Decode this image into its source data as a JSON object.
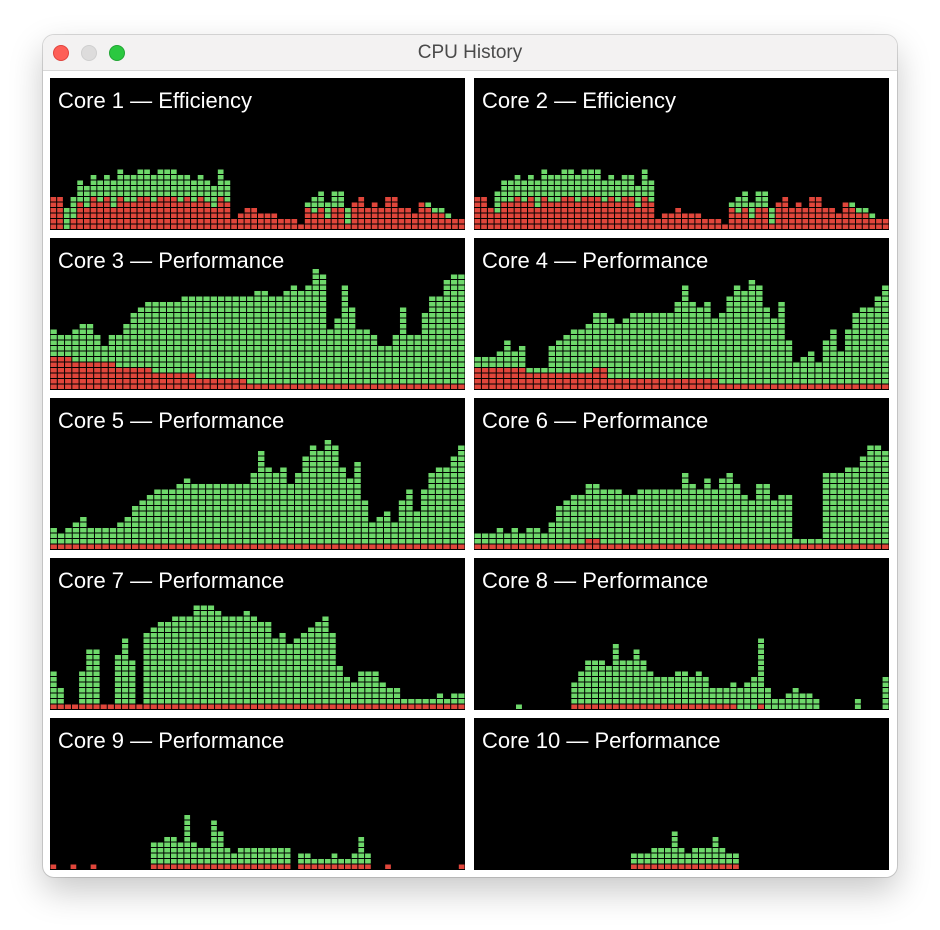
{
  "window": {
    "title": "CPU History"
  },
  "colors": {
    "user": "#6ed86b",
    "system": "#e0463b",
    "background": "#000000"
  },
  "cores": [
    {
      "label": "Core 1 — Efficiency",
      "user": [
        0,
        0,
        4,
        4,
        4,
        4,
        4,
        4,
        4,
        5,
        5,
        5,
        5,
        5,
        5,
        5,
        5,
        5,
        5,
        5,
        4,
        4,
        4,
        4,
        4,
        5,
        4,
        0,
        0,
        0,
        0,
        0,
        0,
        0,
        0,
        0,
        0,
        0,
        1,
        3,
        3,
        3,
        3,
        3,
        3,
        0,
        0,
        0,
        0,
        0,
        0,
        0,
        0,
        0,
        0,
        0,
        1,
        1,
        1,
        1,
        0,
        0
      ],
      "system": [
        6,
        6,
        0,
        2,
        5,
        4,
        6,
        5,
        6,
        4,
        6,
        5,
        5,
        6,
        6,
        5,
        6,
        6,
        6,
        5,
        6,
        5,
        6,
        5,
        4,
        6,
        5,
        2,
        3,
        4,
        4,
        3,
        3,
        3,
        2,
        2,
        2,
        1,
        4,
        3,
        4,
        2,
        4,
        4,
        1,
        5,
        6,
        4,
        5,
        4,
        6,
        6,
        4,
        4,
        3,
        5,
        4,
        3,
        3,
        2,
        2,
        2
      ]
    },
    {
      "label": "Core 2 — Efficiency",
      "user": [
        0,
        0,
        0,
        4,
        4,
        4,
        4,
        4,
        4,
        5,
        5,
        5,
        5,
        5,
        5,
        5,
        5,
        5,
        5,
        4,
        4,
        4,
        4,
        4,
        4,
        5,
        4,
        0,
        0,
        0,
        0,
        0,
        0,
        0,
        0,
        0,
        0,
        0,
        1,
        3,
        3,
        3,
        3,
        3,
        3,
        0,
        0,
        0,
        0,
        0,
        0,
        0,
        0,
        0,
        0,
        0,
        1,
        1,
        1,
        1,
        0,
        0
      ],
      "system": [
        6,
        6,
        4,
        3,
        5,
        5,
        6,
        5,
        6,
        4,
        6,
        5,
        5,
        6,
        6,
        5,
        6,
        6,
        6,
        5,
        6,
        5,
        6,
        6,
        4,
        6,
        5,
        2,
        3,
        3,
        4,
        3,
        3,
        3,
        2,
        2,
        2,
        1,
        4,
        3,
        4,
        2,
        4,
        4,
        1,
        5,
        6,
        4,
        5,
        4,
        6,
        6,
        4,
        4,
        3,
        5,
        4,
        3,
        3,
        2,
        2,
        2
      ]
    },
    {
      "label": "Core 3 — Performance",
      "user": [
        5,
        4,
        4,
        6,
        7,
        7,
        5,
        3,
        5,
        6,
        8,
        10,
        11,
        12,
        13,
        13,
        13,
        13,
        14,
        14,
        15,
        15,
        15,
        15,
        15,
        15,
        15,
        16,
        17,
        17,
        16,
        16,
        17,
        18,
        17,
        18,
        21,
        20,
        10,
        12,
        18,
        14,
        10,
        10,
        9,
        7,
        7,
        9,
        14,
        9,
        9,
        13,
        16,
        16,
        19,
        20,
        20
      ],
      "system": [
        6,
        6,
        6,
        5,
        5,
        5,
        5,
        5,
        5,
        4,
        4,
        4,
        4,
        4,
        3,
        3,
        3,
        3,
        3,
        3,
        2,
        2,
        2,
        2,
        2,
        2,
        2,
        1,
        1,
        1,
        1,
        1,
        1,
        1,
        1,
        1,
        1,
        1,
        1,
        1,
        1,
        1,
        1,
        1,
        1,
        1,
        1,
        1,
        1,
        1,
        1,
        1,
        1,
        1,
        1,
        1,
        1
      ]
    },
    {
      "label": "Core 4 — Performance",
      "user": [
        2,
        2,
        2,
        3,
        5,
        3,
        4,
        1,
        1,
        1,
        5,
        6,
        7,
        8,
        8,
        9,
        10,
        10,
        11,
        10,
        11,
        12,
        12,
        12,
        12,
        12,
        12,
        14,
        17,
        14,
        13,
        14,
        11,
        13,
        16,
        18,
        17,
        19,
        18,
        14,
        12,
        15,
        8,
        4,
        5,
        6,
        4,
        8,
        10,
        6,
        10,
        13,
        14,
        14,
        16,
        18
      ],
      "system": [
        4,
        4,
        4,
        4,
        4,
        4,
        4,
        3,
        3,
        3,
        3,
        3,
        3,
        3,
        3,
        3,
        4,
        4,
        2,
        2,
        2,
        2,
        2,
        2,
        2,
        2,
        2,
        2,
        2,
        2,
        2,
        2,
        2,
        1,
        1,
        1,
        1,
        1,
        1,
        1,
        1,
        1,
        1,
        1,
        1,
        1,
        1,
        1,
        1,
        1,
        1,
        1,
        1,
        1,
        1,
        1
      ]
    },
    {
      "label": "Core 5 — Performance",
      "user": [
        3,
        2,
        3,
        4,
        5,
        3,
        3,
        3,
        3,
        4,
        5,
        7,
        8,
        9,
        10,
        10,
        10,
        11,
        12,
        11,
        11,
        11,
        11,
        11,
        11,
        11,
        11,
        13,
        17,
        14,
        13,
        14,
        11,
        13,
        16,
        18,
        17,
        19,
        18,
        14,
        12,
        15,
        8,
        4,
        5,
        6,
        4,
        8,
        10,
        6,
        10,
        13,
        14,
        14,
        16,
        18
      ],
      "system": [
        1,
        1,
        1,
        1,
        1,
        1,
        1,
        1,
        1,
        1,
        1,
        1,
        1,
        1,
        1,
        1,
        1,
        1,
        1,
        1,
        1,
        1,
        1,
        1,
        1,
        1,
        1,
        1,
        1,
        1,
        1,
        1,
        1,
        1,
        1,
        1,
        1,
        1,
        1,
        1,
        1,
        1,
        1,
        1,
        1,
        1,
        1,
        1,
        1,
        1,
        1,
        1,
        1,
        1,
        1,
        1
      ]
    },
    {
      "label": "Core 6 — Performance",
      "user": [
        2,
        2,
        2,
        3,
        2,
        3,
        2,
        3,
        3,
        2,
        4,
        7,
        8,
        9,
        9,
        10,
        10,
        10,
        10,
        10,
        9,
        9,
        10,
        10,
        10,
        10,
        10,
        10,
        13,
        11,
        10,
        12,
        10,
        12,
        13,
        11,
        9,
        8,
        11,
        11,
        8,
        9,
        9,
        1,
        1,
        1,
        1,
        13,
        13,
        13,
        14,
        14,
        16,
        18,
        18,
        17
      ],
      "system": [
        1,
        1,
        1,
        1,
        1,
        1,
        1,
        1,
        1,
        1,
        1,
        1,
        1,
        1,
        1,
        2,
        2,
        1,
        1,
        1,
        1,
        1,
        1,
        1,
        1,
        1,
        1,
        1,
        1,
        1,
        1,
        1,
        1,
        1,
        1,
        1,
        1,
        1,
        1,
        1,
        1,
        1,
        1,
        1,
        1,
        1,
        1,
        1,
        1,
        1,
        1,
        1,
        1,
        1,
        1,
        1
      ]
    },
    {
      "label": "Core 7 — Performance",
      "user": [
        6,
        3,
        0,
        0,
        6,
        10,
        10,
        0,
        0,
        9,
        12,
        8,
        0,
        13,
        14,
        15,
        15,
        16,
        16,
        16,
        18,
        18,
        18,
        17,
        16,
        16,
        16,
        17,
        16,
        15,
        15,
        12,
        13,
        11,
        12,
        13,
        14,
        15,
        16,
        13,
        7,
        5,
        4,
        6,
        6,
        6,
        4,
        3,
        3,
        1,
        1,
        1,
        1,
        1,
        2,
        1,
        2,
        2
      ],
      "system": [
        1,
        1,
        1,
        1,
        1,
        1,
        1,
        1,
        1,
        1,
        1,
        1,
        1,
        1,
        1,
        1,
        1,
        1,
        1,
        1,
        1,
        1,
        1,
        1,
        1,
        1,
        1,
        1,
        1,
        1,
        1,
        1,
        1,
        1,
        1,
        1,
        1,
        1,
        1,
        1,
        1,
        1,
        1,
        1,
        1,
        1,
        1,
        1,
        1,
        1,
        1,
        1,
        1,
        1,
        1,
        1,
        1,
        1
      ]
    },
    {
      "label": "Core 8 — Performance",
      "user": [
        0,
        0,
        0,
        0,
        0,
        0,
        1,
        0,
        0,
        0,
        0,
        0,
        0,
        0,
        4,
        6,
        8,
        8,
        8,
        7,
        11,
        8,
        8,
        10,
        8,
        6,
        5,
        5,
        5,
        6,
        6,
        5,
        6,
        5,
        3,
        3,
        3,
        4,
        4,
        5,
        6,
        12,
        4,
        2,
        2,
        3,
        4,
        3,
        3,
        2,
        0,
        0,
        0,
        0,
        0,
        2,
        0,
        0,
        0,
        6
      ],
      "system": [
        0,
        0,
        0,
        0,
        0,
        0,
        0,
        0,
        0,
        0,
        0,
        0,
        0,
        0,
        1,
        1,
        1,
        1,
        1,
        1,
        1,
        1,
        1,
        1,
        1,
        1,
        1,
        1,
        1,
        1,
        1,
        1,
        1,
        1,
        1,
        1,
        1,
        1,
        0,
        0,
        0,
        1,
        0,
        0,
        0,
        0,
        0,
        0,
        0,
        0,
        0,
        0,
        0,
        0,
        0,
        0,
        0,
        0,
        0,
        0
      ]
    },
    {
      "label": "Core 9 — Performance",
      "user": [
        0,
        0,
        0,
        0,
        0,
        0,
        0,
        0,
        0,
        0,
        0,
        0,
        0,
        0,
        0,
        4,
        4,
        5,
        5,
        4,
        9,
        4,
        3,
        3,
        8,
        6,
        3,
        2,
        3,
        3,
        3,
        3,
        3,
        3,
        3,
        3,
        0,
        2,
        2,
        1,
        1,
        1,
        2,
        1,
        1,
        2,
        5,
        2,
        0,
        0,
        0,
        0,
        0,
        0,
        0,
        0,
        0,
        0,
        0,
        0,
        0,
        0
      ],
      "system": [
        1,
        0,
        0,
        1,
        0,
        0,
        1,
        0,
        0,
        0,
        0,
        0,
        0,
        0,
        0,
        1,
        1,
        1,
        1,
        1,
        1,
        1,
        1,
        1,
        1,
        1,
        1,
        1,
        1,
        1,
        1,
        1,
        1,
        1,
        1,
        1,
        0,
        1,
        1,
        1,
        1,
        1,
        1,
        1,
        1,
        1,
        1,
        1,
        0,
        0,
        1,
        0,
        0,
        0,
        0,
        0,
        0,
        0,
        0,
        0,
        0,
        1
      ]
    },
    {
      "label": "Core 10 — Performance",
      "user": [
        0,
        0,
        0,
        0,
        0,
        0,
        0,
        0,
        0,
        0,
        0,
        0,
        0,
        0,
        0,
        0,
        0,
        0,
        0,
        0,
        0,
        0,
        0,
        2,
        2,
        2,
        3,
        3,
        3,
        6,
        3,
        2,
        3,
        3,
        3,
        5,
        3,
        2,
        2,
        0,
        0,
        0,
        0,
        0,
        0,
        0,
        0,
        0,
        0,
        0,
        0,
        0,
        0,
        0,
        0,
        0,
        0,
        0,
        0,
        0,
        0
      ],
      "system": [
        0,
        0,
        0,
        0,
        0,
        0,
        0,
        0,
        0,
        0,
        0,
        0,
        0,
        0,
        0,
        0,
        0,
        0,
        0,
        0,
        0,
        0,
        0,
        1,
        1,
        1,
        1,
        1,
        1,
        1,
        1,
        1,
        1,
        1,
        1,
        1,
        1,
        1,
        1,
        0,
        0,
        0,
        0,
        0,
        0,
        0,
        0,
        0,
        0,
        0,
        0,
        0,
        0,
        0,
        0,
        0,
        0
      ]
    }
  ]
}
